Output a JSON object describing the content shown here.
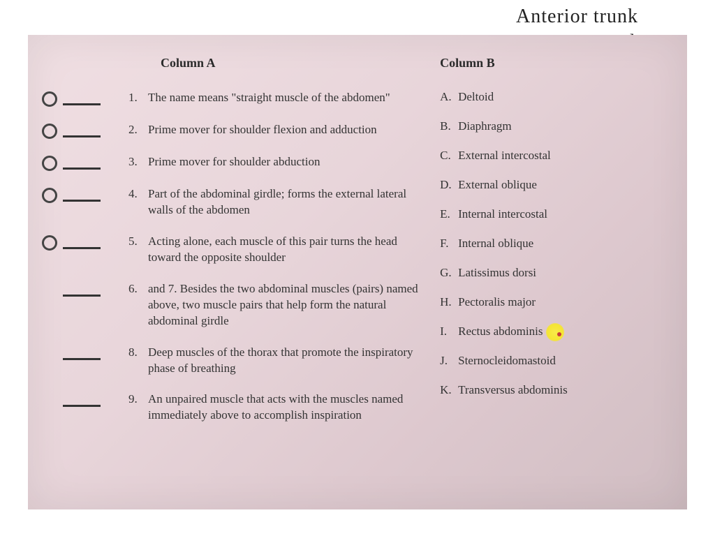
{
  "handwriting": {
    "line1": "Anterior trunk",
    "line2": "muscles"
  },
  "headers": {
    "columnA": "Column A",
    "columnB": "Column B"
  },
  "questions": [
    {
      "num": "1.",
      "text": "The name means \"straight muscle of the abdomen\"",
      "bubble": true
    },
    {
      "num": "2.",
      "text": "Prime mover for shoulder flexion and adduction",
      "bubble": true
    },
    {
      "num": "3.",
      "text": "Prime mover for shoulder abduction",
      "bubble": true
    },
    {
      "num": "4.",
      "text": "Part of the abdominal girdle; forms the external lateral walls of the abdomen",
      "bubble": true
    },
    {
      "num": "5.",
      "text": "Acting alone, each muscle of this pair turns the head toward the opposite shoulder",
      "bubble": true
    },
    {
      "num": "6.",
      "text": "and 7. Besides the two abdominal muscles (pairs) named above, two muscle pairs that help form the natural abdominal girdle",
      "bubble": false
    },
    {
      "num": "8.",
      "text": "Deep muscles of the thorax that promote the inspiratory phase of breathing",
      "bubble": false
    },
    {
      "num": "9.",
      "text": "An unpaired muscle that acts with the muscles named immediately above to accomplish inspiration",
      "bubble": false
    }
  ],
  "answers": [
    {
      "letter": "A.",
      "text": "Deltoid",
      "highlight": false
    },
    {
      "letter": "B.",
      "text": "Diaphragm",
      "highlight": false
    },
    {
      "letter": "C.",
      "text": "External intercostal",
      "highlight": false
    },
    {
      "letter": "D.",
      "text": "External oblique",
      "highlight": false
    },
    {
      "letter": "E.",
      "text": "Internal intercostal",
      "highlight": false
    },
    {
      "letter": "F.",
      "text": "Internal oblique",
      "highlight": false
    },
    {
      "letter": "G.",
      "text": "Latissimus dorsi",
      "highlight": false
    },
    {
      "letter": "H.",
      "text": "Pectoralis major",
      "highlight": false
    },
    {
      "letter": "I.",
      "text": "Rectus abdominis",
      "highlight": true
    },
    {
      "letter": "J.",
      "text": "Sternocleidomastoid",
      "highlight": false
    },
    {
      "letter": "K.",
      "text": "Transversus abdominis",
      "highlight": false
    }
  ],
  "colors": {
    "pageBg": "#e8d5da",
    "text": "#333333",
    "bubbleBorder": "#444444",
    "highlight": "#f5e533",
    "redDot": "#c83a3a"
  }
}
